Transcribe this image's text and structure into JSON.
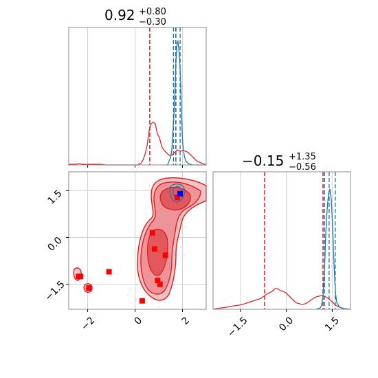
{
  "chart_data": [
    {
      "type": "histogram",
      "panel": "top-left marginal",
      "title": {
        "value": "0.92",
        "upper": "+0.80",
        "lower": "−0.30"
      },
      "xlim": [
        -2.8,
        3.0
      ],
      "grid": true,
      "quantile_lines": {
        "red": [
          0.62,
          1.72
        ],
        "blue": [
          1.62,
          1.72,
          1.9
        ]
      },
      "colors": {
        "red": "#d62728",
        "blue": "#1f77b4"
      }
    },
    {
      "type": "contour",
      "panel": "bottom-left joint",
      "xlim": [
        -2.8,
        3.0
      ],
      "ylim": [
        -2.3,
        2.1
      ],
      "grid": true,
      "x_ticks": [
        {
          "value": -2,
          "label": "−2"
        },
        {
          "value": 0,
          "label": "0"
        },
        {
          "value": 2,
          "label": "2"
        }
      ],
      "y_ticks": [
        {
          "value": -1.5,
          "label": "−1.5"
        },
        {
          "value": 0.0,
          "label": "0.0"
        },
        {
          "value": 1.5,
          "label": "1.5"
        }
      ],
      "red_points": [
        {
          "x": -2.38,
          "y": -1.25
        },
        {
          "x": -2.3,
          "y": -1.25
        },
        {
          "x": -1.95,
          "y": -1.62
        },
        {
          "x": -1.1,
          "y": -1.1
        },
        {
          "x": 0.3,
          "y": -2.03
        },
        {
          "x": 0.73,
          "y": 0.15
        },
        {
          "x": 0.82,
          "y": -0.37
        },
        {
          "x": 0.95,
          "y": -1.38
        },
        {
          "x": 1.05,
          "y": -1.5
        },
        {
          "x": 1.28,
          "y": -0.57
        },
        {
          "x": 1.78,
          "y": 1.28
        }
      ],
      "blue_points": [
        {
          "x": 1.9,
          "y": 1.4
        }
      ],
      "colors": {
        "red": "#d62728",
        "blue": "#1f77b4",
        "marker_blue": "#0000ff"
      }
    },
    {
      "type": "histogram",
      "panel": "bottom-right marginal",
      "title": {
        "value": "−0.15",
        "upper": "+1.35",
        "lower": "−0.56"
      },
      "xlim": [
        -2.4,
        2.1
      ],
      "grid": true,
      "x_ticks": [
        {
          "value": -1.5,
          "label": "−1.5"
        },
        {
          "value": 0.0,
          "label": "0.0"
        },
        {
          "value": 1.5,
          "label": "1.5"
        }
      ],
      "quantile_lines": {
        "red": [
          -0.71,
          1.2
        ],
        "blue": [
          1.25,
          1.4,
          1.6
        ]
      },
      "colors": {
        "red": "#d62728",
        "blue": "#1f77b4"
      }
    }
  ]
}
